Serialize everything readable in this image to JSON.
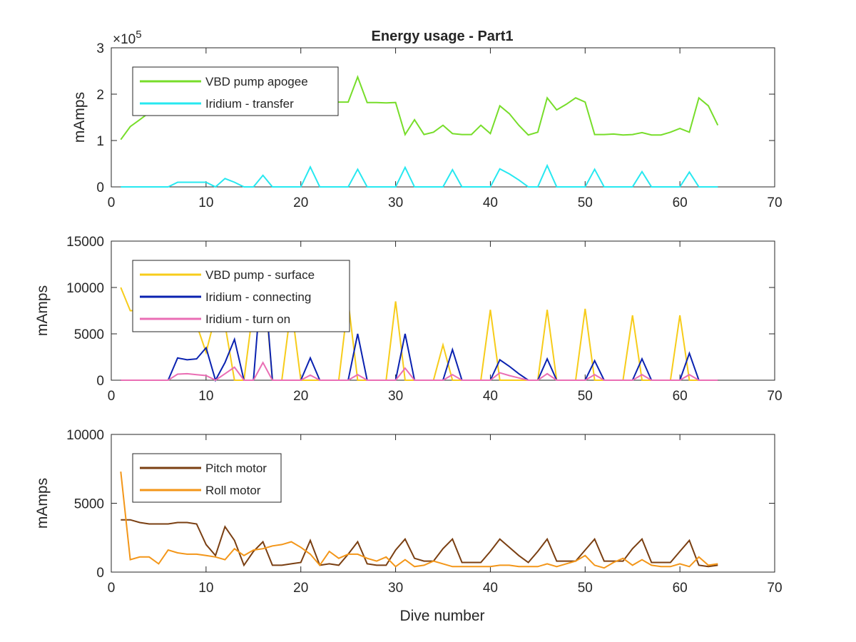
{
  "figure": {
    "title": "Energy usage - Part1",
    "xlabel": "Dive number"
  },
  "chart_data": [
    {
      "type": "line",
      "title": "Energy usage - Part1",
      "xlabel": "",
      "ylabel": "mAmps",
      "xlim": [
        0,
        70
      ],
      "ylim": [
        0,
        300000
      ],
      "xticks": [
        0,
        10,
        20,
        30,
        40,
        50,
        60,
        70
      ],
      "yticks": [
        0,
        100000,
        200000,
        300000
      ],
      "ytick_labels": [
        "0",
        "1",
        "2",
        "3"
      ],
      "exponent_label": "×10",
      "exponent_power": "5",
      "grid": false,
      "legend_position": "top-left",
      "series": [
        {
          "name": "VBD pump apogee",
          "color": "#77dd2a",
          "x": [
            1,
            2,
            3,
            4,
            5,
            6,
            7,
            8,
            9,
            10,
            11,
            12,
            13,
            14,
            15,
            16,
            17,
            18,
            19,
            20,
            21,
            22,
            23,
            24,
            25,
            26,
            27,
            28,
            29,
            30,
            31,
            32,
            33,
            34,
            35,
            36,
            37,
            38,
            39,
            40,
            41,
            42,
            43,
            44,
            45,
            46,
            47,
            48,
            49,
            50,
            51,
            52,
            53,
            54,
            55,
            56,
            57,
            58,
            59,
            60,
            61,
            62,
            63,
            64
          ],
          "y": [
            102000,
            130000,
            145000,
            160000,
            170000,
            175000,
            178000,
            180000,
            182000,
            183000,
            184000,
            185000,
            185000,
            185000,
            185000,
            185000,
            185000,
            185000,
            185000,
            185000,
            185000,
            185000,
            185000,
            183000,
            183000,
            237000,
            182000,
            182000,
            181000,
            182000,
            113000,
            145000,
            113000,
            118000,
            133000,
            115000,
            113000,
            113000,
            133000,
            115000,
            175000,
            158000,
            133000,
            112000,
            118000,
            192000,
            166000,
            178000,
            192000,
            183000,
            113000,
            113000,
            114000,
            112000,
            113000,
            117000,
            112000,
            112000,
            118000,
            126000,
            118000,
            192000,
            175000,
            133000
          ]
        },
        {
          "name": "Iridium - transfer",
          "color": "#27e8f0",
          "x": [
            1,
            2,
            3,
            4,
            5,
            6,
            7,
            8,
            9,
            10,
            11,
            12,
            13,
            14,
            15,
            16,
            17,
            18,
            19,
            20,
            21,
            22,
            23,
            24,
            25,
            26,
            27,
            28,
            29,
            30,
            31,
            32,
            33,
            34,
            35,
            36,
            37,
            38,
            39,
            40,
            41,
            42,
            43,
            44,
            45,
            46,
            47,
            48,
            49,
            50,
            51,
            52,
            53,
            54,
            55,
            56,
            57,
            58,
            59,
            60,
            61,
            62,
            63,
            64
          ],
          "y": [
            0,
            0,
            0,
            0,
            0,
            0,
            10000,
            10000,
            10000,
            10000,
            0,
            18000,
            10000,
            0,
            0,
            25000,
            0,
            0,
            0,
            0,
            43000,
            0,
            0,
            0,
            0,
            38000,
            0,
            0,
            0,
            0,
            42000,
            0,
            0,
            0,
            0,
            37000,
            0,
            0,
            0,
            0,
            39000,
            28000,
            15000,
            0,
            0,
            46000,
            0,
            0,
            0,
            0,
            38000,
            0,
            0,
            0,
            0,
            33000,
            0,
            0,
            0,
            0,
            32000,
            0,
            0,
            0
          ]
        }
      ]
    },
    {
      "type": "line",
      "title": "",
      "xlabel": "",
      "ylabel": "mAmps",
      "xlim": [
        0,
        70
      ],
      "ylim": [
        0,
        15000
      ],
      "xticks": [
        0,
        10,
        20,
        30,
        40,
        50,
        60,
        70
      ],
      "yticks": [
        0,
        5000,
        10000,
        15000
      ],
      "ytick_labels": [
        "0",
        "5000",
        "10000",
        "15000"
      ],
      "grid": false,
      "legend_position": "top-left",
      "series": [
        {
          "name": "VBD pump - surface",
          "color": "#f7cc1a",
          "x": [
            1,
            2,
            3,
            4,
            5,
            6,
            7,
            8,
            9,
            10,
            11,
            12,
            13,
            14,
            15,
            16,
            17,
            18,
            19,
            20,
            21,
            22,
            23,
            24,
            25,
            26,
            27,
            28,
            29,
            30,
            31,
            32,
            33,
            34,
            35,
            36,
            37,
            38,
            39,
            40,
            41,
            42,
            43,
            44,
            45,
            46,
            47,
            48,
            49,
            50,
            51,
            52,
            53,
            54,
            55,
            56,
            57,
            58,
            59,
            60,
            61,
            62,
            63,
            64
          ],
          "y": [
            10000,
            7500,
            7500,
            7000,
            7000,
            6500,
            6500,
            6500,
            6000,
            3000,
            7000,
            6000,
            0,
            0,
            8000,
            12000,
            0,
            0,
            8000,
            0,
            0,
            0,
            0,
            0,
            8500,
            0,
            0,
            0,
            0,
            8500,
            0,
            0,
            0,
            0,
            3800,
            0,
            0,
            0,
            0,
            7600,
            0,
            0,
            0,
            0,
            0,
            7600,
            0,
            0,
            0,
            7700,
            0,
            0,
            0,
            0,
            7000,
            0,
            0,
            0,
            0,
            7000,
            0,
            0,
            0,
            0
          ]
        },
        {
          "name": "Iridium - connecting",
          "color": "#0a22b0",
          "x": [
            1,
            2,
            3,
            4,
            5,
            6,
            7,
            8,
            9,
            10,
            11,
            12,
            13,
            14,
            15,
            16,
            17,
            18,
            19,
            20,
            21,
            22,
            23,
            24,
            25,
            26,
            27,
            28,
            29,
            30,
            31,
            32,
            33,
            34,
            35,
            36,
            37,
            38,
            39,
            40,
            41,
            42,
            43,
            44,
            45,
            46,
            47,
            48,
            49,
            50,
            51,
            52,
            53,
            54,
            55,
            56,
            57,
            58,
            59,
            60,
            61,
            62,
            63,
            64
          ],
          "y": [
            0,
            0,
            0,
            0,
            0,
            0,
            2400,
            2200,
            2300,
            3500,
            0,
            1900,
            4400,
            0,
            0,
            12800,
            0,
            0,
            0,
            0,
            2400,
            0,
            0,
            0,
            0,
            5000,
            0,
            0,
            0,
            0,
            5000,
            0,
            0,
            0,
            0,
            3300,
            0,
            0,
            0,
            0,
            2200,
            1500,
            700,
            0,
            0,
            2300,
            0,
            0,
            0,
            0,
            2100,
            0,
            0,
            0,
            0,
            2300,
            0,
            0,
            0,
            0,
            2900,
            0,
            0,
            0
          ]
        },
        {
          "name": "Iridium - turn on",
          "color": "#ea6eb4",
          "x": [
            1,
            2,
            3,
            4,
            5,
            6,
            7,
            8,
            9,
            10,
            11,
            12,
            13,
            14,
            15,
            16,
            17,
            18,
            19,
            20,
            21,
            22,
            23,
            24,
            25,
            26,
            27,
            28,
            29,
            30,
            31,
            32,
            33,
            34,
            35,
            36,
            37,
            38,
            39,
            40,
            41,
            42,
            43,
            44,
            45,
            46,
            47,
            48,
            49,
            50,
            51,
            52,
            53,
            54,
            55,
            56,
            57,
            58,
            59,
            60,
            61,
            62,
            63,
            64
          ],
          "y": [
            0,
            0,
            0,
            0,
            0,
            0,
            650,
            700,
            600,
            500,
            0,
            700,
            1400,
            0,
            0,
            1900,
            0,
            0,
            0,
            0,
            550,
            0,
            0,
            0,
            0,
            600,
            0,
            0,
            0,
            0,
            1300,
            0,
            0,
            0,
            0,
            600,
            0,
            0,
            0,
            0,
            800,
            500,
            250,
            0,
            0,
            700,
            0,
            0,
            0,
            0,
            600,
            0,
            0,
            0,
            0,
            600,
            0,
            0,
            0,
            0,
            600,
            0,
            0,
            0
          ]
        }
      ]
    },
    {
      "type": "line",
      "title": "",
      "xlabel": "Dive number",
      "ylabel": "mAmps",
      "xlim": [
        0,
        70
      ],
      "ylim": [
        0,
        10000
      ],
      "xticks": [
        0,
        10,
        20,
        30,
        40,
        50,
        60,
        70
      ],
      "yticks": [
        0,
        5000,
        10000
      ],
      "ytick_labels": [
        "0",
        "5000",
        "10000"
      ],
      "grid": false,
      "legend_position": "top-left",
      "series": [
        {
          "name": "Pitch motor",
          "color": "#7a3f12",
          "x": [
            1,
            2,
            3,
            4,
            5,
            6,
            7,
            8,
            9,
            10,
            11,
            12,
            13,
            14,
            15,
            16,
            17,
            18,
            19,
            20,
            21,
            22,
            23,
            24,
            25,
            26,
            27,
            28,
            29,
            30,
            31,
            32,
            33,
            34,
            35,
            36,
            37,
            38,
            39,
            40,
            41,
            42,
            43,
            44,
            45,
            46,
            47,
            48,
            49,
            50,
            51,
            52,
            53,
            54,
            55,
            56,
            57,
            58,
            59,
            60,
            61,
            62,
            63,
            64
          ],
          "y": [
            3800,
            3800,
            3600,
            3500,
            3500,
            3500,
            3600,
            3600,
            3500,
            2000,
            1200,
            3300,
            2300,
            500,
            1500,
            2200,
            500,
            500,
            600,
            700,
            2300,
            500,
            600,
            500,
            1300,
            2200,
            600,
            500,
            500,
            1600,
            2400,
            1000,
            800,
            800,
            1700,
            2400,
            700,
            700,
            700,
            1500,
            2400,
            1800,
            1200,
            700,
            1500,
            2400,
            800,
            800,
            800,
            1600,
            2400,
            800,
            800,
            800,
            1700,
            2400,
            700,
            700,
            700,
            1500,
            2300,
            500,
            400,
            500
          ]
        },
        {
          "name": "Roll motor",
          "color": "#f39619",
          "x": [
            1,
            2,
            3,
            4,
            5,
            6,
            7,
            8,
            9,
            10,
            11,
            12,
            13,
            14,
            15,
            16,
            17,
            18,
            19,
            20,
            21,
            22,
            23,
            24,
            25,
            26,
            27,
            28,
            29,
            30,
            31,
            32,
            33,
            34,
            35,
            36,
            37,
            38,
            39,
            40,
            41,
            42,
            43,
            44,
            45,
            46,
            47,
            48,
            49,
            50,
            51,
            52,
            53,
            54,
            55,
            56,
            57,
            58,
            59,
            60,
            61,
            62,
            63,
            64
          ],
          "y": [
            7300,
            900,
            1100,
            1100,
            600,
            1600,
            1400,
            1300,
            1300,
            1200,
            1100,
            900,
            1700,
            1200,
            1600,
            1700,
            1900,
            2000,
            2200,
            1800,
            1300,
            500,
            1500,
            1000,
            1300,
            1300,
            1000,
            800,
            1100,
            400,
            900,
            400,
            500,
            800,
            600,
            400,
            400,
            400,
            400,
            400,
            500,
            500,
            400,
            400,
            400,
            600,
            400,
            600,
            800,
            1200,
            500,
            300,
            700,
            1000,
            500,
            900,
            500,
            400,
            400,
            600,
            400,
            1100,
            500,
            600
          ]
        }
      ]
    }
  ]
}
